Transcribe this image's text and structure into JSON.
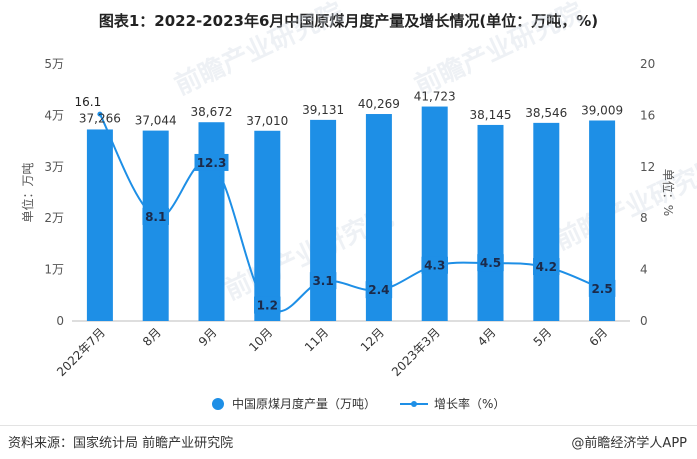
{
  "title": "图表1：2022-2023年6月中国原煤月度产量及增长情况(单位：万吨，%)",
  "footer": {
    "source": "资料来源：国家统计局 前瞻产业研究院",
    "brand": "@前瞻经济学人APP"
  },
  "watermark": "前瞻产业研究院",
  "colors": {
    "bar": "#1E8FE6",
    "line": "#1E8FE6",
    "label_bg": "#1E8FE6"
  },
  "chart_data": {
    "type": "bar",
    "categories": [
      "2022年7月",
      "8月",
      "9月",
      "10月",
      "11月",
      "12月",
      "2023年3月",
      "4月",
      "5月",
      "6月"
    ],
    "series": [
      {
        "name": "中国原煤月度产量（万吨）",
        "type": "bar",
        "axis": "left",
        "values": [
          37266,
          37044,
          38672,
          37010,
          39131,
          40269,
          41723,
          38145,
          38546,
          39009
        ]
      },
      {
        "name": "增长率（%）",
        "type": "line",
        "axis": "right",
        "values": [
          16.1,
          8.1,
          12.3,
          1.2,
          3.1,
          2.4,
          4.3,
          4.5,
          4.2,
          2.5
        ]
      }
    ],
    "bar_labels": [
      "37,266",
      "37,044",
      "38,672",
      "37,010",
      "39,131",
      "40,269",
      "41,723",
      "38,145",
      "38,546",
      "39,009"
    ],
    "ylabel_left": "单位：万吨",
    "ylabel_right": "单位：%",
    "ylim_left": [
      0,
      50000
    ],
    "ylim_right": [
      0,
      20
    ],
    "yticks_left": [
      "0",
      "1万",
      "2万",
      "3万",
      "4万",
      "5万"
    ],
    "yticks_right": [
      "0",
      "4",
      "8",
      "12",
      "16",
      "20"
    ],
    "grid": false,
    "legend": "bottom-center"
  }
}
